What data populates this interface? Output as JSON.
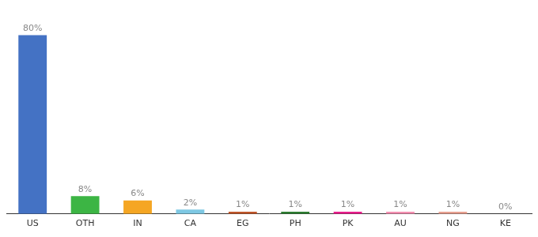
{
  "chart_data": {
    "type": "bar",
    "categories": [
      "US",
      "OTH",
      "IN",
      "CA",
      "EG",
      "PH",
      "PK",
      "AU",
      "NG",
      "KE"
    ],
    "values": [
      80,
      8,
      6,
      2,
      1,
      1,
      1,
      1,
      1,
      0
    ],
    "value_labels": [
      "80%",
      "8%",
      "6%",
      "2%",
      "1%",
      "1%",
      "1%",
      "1%",
      "1%",
      "0%"
    ],
    "colors": [
      "#4472c4",
      "#3cb544",
      "#f5a623",
      "#7ec8e3",
      "#c0562a",
      "#2e7d32",
      "#e91e8c",
      "#f48fb1",
      "#e8a090",
      "#cccccc"
    ],
    "ylim": [
      0,
      88
    ],
    "data_labels": true,
    "tick_labels": "x",
    "grid": false
  }
}
